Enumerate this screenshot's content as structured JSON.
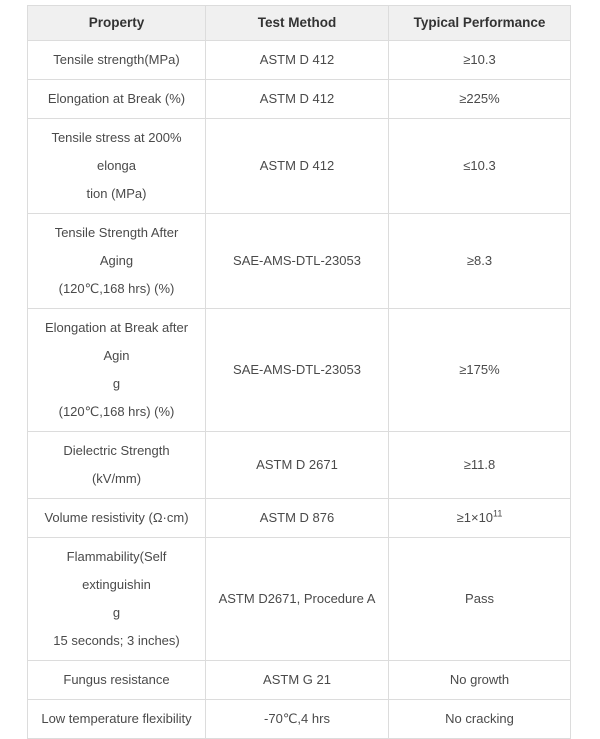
{
  "table": {
    "columns": [
      "Property",
      "Test Method",
      "Typical Performance"
    ],
    "rows": [
      {
        "property": "Tensile strength(MPa)",
        "test_method": "ASTM D 412",
        "performance": "≥10.3"
      },
      {
        "property": "Elongation at Break (%)",
        "test_method": "ASTM D 412",
        "performance": "≥225%"
      },
      {
        "property": "Tensile stress at 200% elonga\ntion (MPa)",
        "test_method": "ASTM D 412",
        "performance": "≤10.3"
      },
      {
        "property": "Tensile Strength After Aging\n(120℃,168 hrs) (%)",
        "test_method": "SAE-AMS-DTL-23053",
        "performance": "≥8.3"
      },
      {
        "property": "Elongation at Break after Agin\ng\n(120℃,168 hrs) (%)",
        "test_method": "SAE-AMS-DTL-23053",
        "performance": "≥175%"
      },
      {
        "property": "Dielectric Strength (kV/mm)",
        "test_method": "ASTM D 2671",
        "performance": "≥11.8"
      },
      {
        "property": "Volume resistivity (Ω·cm)",
        "test_method": "ASTM D 876",
        "performance_base": "≥1×10",
        "performance_sup": "11"
      },
      {
        "property": "Flammability(Self extinguishin\ng\n15 seconds; 3 inches)",
        "test_method": "ASTM D2671, Procedure A",
        "performance": "Pass"
      },
      {
        "property": "Fungus resistance",
        "test_method": "ASTM G 21",
        "performance": "No growth"
      },
      {
        "property": "Low temperature flexibility",
        "test_method": "-70℃,4 hrs",
        "performance": "No cracking"
      }
    ],
    "colors": {
      "header_bg": "#f0f0f0",
      "border": "#dcdcdc",
      "header_text": "#333333",
      "body_text": "#4a4a4a"
    }
  }
}
